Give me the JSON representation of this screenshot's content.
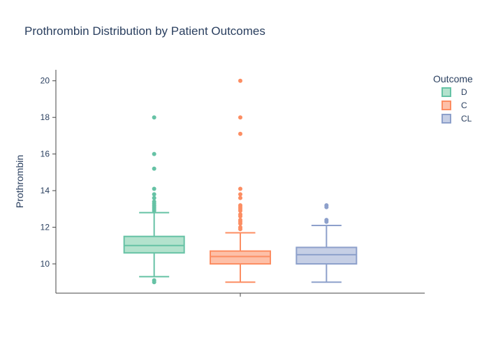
{
  "chart_data": {
    "type": "box",
    "title": "Prothrombin Distribution by Patient Outcomes",
    "xlabel": "",
    "ylabel": "Prothrombin",
    "ylim": [
      8.4,
      20.6
    ],
    "yticks": [
      10,
      12,
      14,
      16,
      18,
      20
    ],
    "grid": false,
    "legend": {
      "title": "Outcome",
      "position": "top-right"
    },
    "series": [
      {
        "name": "D",
        "color": "#66c2a5",
        "fill": "#b3e2cd",
        "lowerfence": 9.3,
        "q1": 10.6,
        "median": 11.0,
        "q3": 11.5,
        "upperfence": 12.8,
        "outliers": [
          18.0,
          16.0,
          15.2,
          14.1,
          13.8,
          13.6,
          13.4,
          13.3,
          13.2,
          13.1,
          13.0,
          12.9,
          9.1,
          9.0
        ]
      },
      {
        "name": "C",
        "color": "#fc8d62",
        "fill": "#fdc0a8",
        "lowerfence": 9.0,
        "q1": 10.0,
        "median": 10.4,
        "q3": 10.7,
        "upperfence": 11.7,
        "outliers": [
          20.0,
          18.0,
          17.1,
          14.1,
          13.8,
          13.6,
          13.2,
          13.1,
          13.0,
          12.9,
          12.7,
          12.6,
          12.4,
          12.3,
          12.2,
          12.0,
          11.9
        ]
      },
      {
        "name": "CL",
        "color": "#8da0cb",
        "fill": "#c6cfe5",
        "lowerfence": 9.0,
        "q1": 10.0,
        "median": 10.5,
        "q3": 10.9,
        "upperfence": 12.1,
        "outliers": [
          13.2,
          13.1,
          12.4,
          12.3
        ]
      }
    ]
  }
}
